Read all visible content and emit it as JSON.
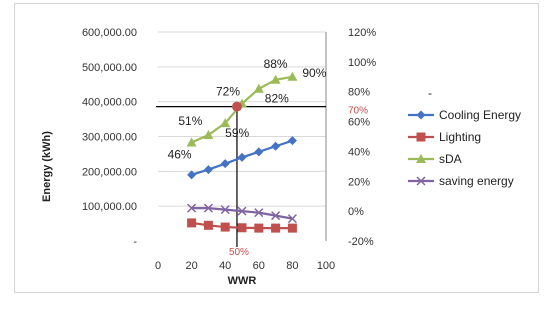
{
  "chart_data": {
    "type": "line",
    "xlabel": "WWR",
    "ylabel": "Energy (kWh)",
    "x_ticks": [
      "0",
      "20",
      "40",
      "60",
      "80",
      "100"
    ],
    "xlim": [
      0,
      100
    ],
    "y_left_ticks": [
      "-",
      "100,000.00",
      "200,000.00",
      "300,000.00",
      "400,000.00",
      "500,000.00",
      "600,000.00"
    ],
    "ylim_left": [
      0,
      600000
    ],
    "y_right_ticks": [
      "-20%",
      "0%",
      "20%",
      "40%",
      "60%",
      "80%",
      "100%",
      "120%"
    ],
    "ylim_right": [
      -20,
      120
    ],
    "legend_position": "right",
    "legend_marker_char": "-",
    "series": [
      {
        "name": "Cooling Energy",
        "axis": "left",
        "color": "#4472C4",
        "marker": "diamond",
        "x": [
          20,
          30,
          40,
          50,
          60,
          70,
          80
        ],
        "y": [
          190000,
          205000,
          222000,
          240000,
          256000,
          272000,
          288000
        ]
      },
      {
        "name": "Lighting",
        "axis": "left",
        "color": "#C0504D",
        "marker": "square",
        "x": [
          20,
          30,
          40,
          50,
          60,
          70,
          80
        ],
        "y": [
          52000,
          45000,
          40000,
          38000,
          37000,
          37000,
          37000
        ]
      },
      {
        "name": "sDA",
        "axis": "right",
        "color": "#9BBB59",
        "marker": "triangle",
        "x": [
          20,
          30,
          40,
          50,
          60,
          70,
          80
        ],
        "y": [
          46,
          51,
          59,
          72,
          82,
          88,
          90
        ]
      },
      {
        "name": "saving energy",
        "axis": "right",
        "color": "#8064A2",
        "marker": "cross",
        "x": [
          20,
          30,
          40,
          50,
          60,
          70,
          80
        ],
        "y": [
          2,
          2,
          1,
          0,
          -1,
          -3,
          -5
        ]
      }
    ],
    "data_labels": [
      {
        "text": "46%",
        "x": 20,
        "y": 46
      },
      {
        "text": "51%",
        "x": 30,
        "y": 51
      },
      {
        "text": "59%",
        "x": 40,
        "y": 59
      },
      {
        "text": "72%",
        "x": 50,
        "y": 72
      },
      {
        "text": "82%",
        "x": 60,
        "y": 82
      },
      {
        "text": "88%",
        "x": 70,
        "y": 88
      },
      {
        "text": "90%",
        "x": 80,
        "y": 90
      }
    ],
    "annotations": [
      {
        "text": "70%",
        "color": "#C0504D"
      },
      {
        "text": "50%",
        "color": "#C0504D"
      }
    ],
    "reference_lines": {
      "horizontal_right_value": 70,
      "vertical_x": 47
    },
    "highlight_point": {
      "x": 47,
      "y_right": 70,
      "color": "#C0504D"
    },
    "grid": "horizontal"
  }
}
